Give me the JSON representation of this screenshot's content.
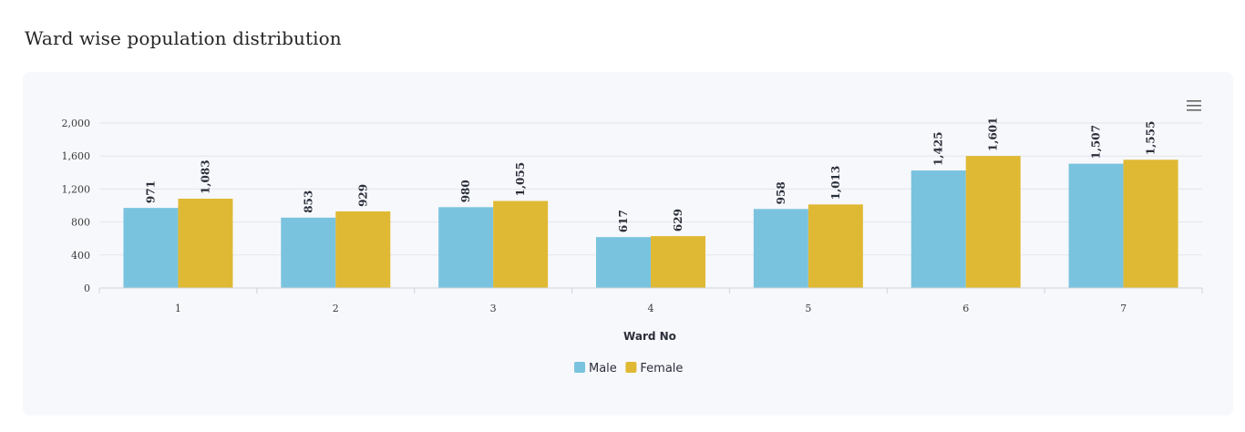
{
  "page": {
    "title": "Ward wise population distribution",
    "menu_icon": "hamburger-menu-icon"
  },
  "chart_data": {
    "type": "bar",
    "title": "",
    "xlabel": "Ward No",
    "ylabel": "",
    "categories": [
      "1",
      "2",
      "3",
      "4",
      "5",
      "6",
      "7"
    ],
    "series": [
      {
        "name": "Male",
        "color": "#7ac3de",
        "values": [
          971,
          853,
          980,
          617,
          958,
          1425,
          1507
        ]
      },
      {
        "name": "Female",
        "color": "#e0b934",
        "values": [
          1083,
          929,
          1055,
          629,
          1013,
          1601,
          1555
        ]
      }
    ],
    "ylim": [
      0,
      2000
    ],
    "yticks": [
      0,
      400,
      800,
      1200,
      1600,
      2000
    ],
    "ytick_labels": [
      "0",
      "400",
      "800",
      "1,200",
      "1,600",
      "2,000"
    ],
    "grid": true,
    "legend": "bottom-center"
  }
}
